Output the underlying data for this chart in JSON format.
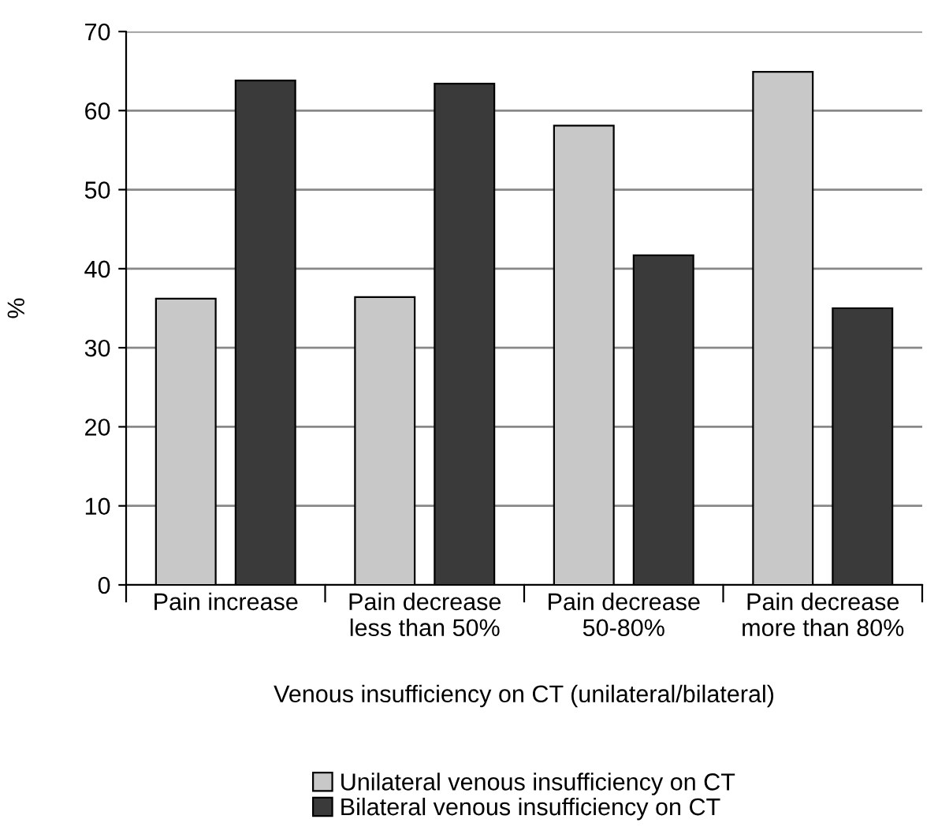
{
  "chart_data": {
    "type": "bar",
    "ylabel": "%",
    "xlabel": "Venous insufficiency on CT (unilateral/bilateral)",
    "categories": [
      "Pain increase",
      "Pain decrease\nless than 50%",
      "Pain decrease\n50-80%",
      "Pain decrease\nmore than 80%"
    ],
    "series": [
      {
        "name": "Unilateral venous insufficiency on CT",
        "color": "#c8c8c8",
        "values": [
          36.2,
          36.4,
          58.1,
          64.9
        ]
      },
      {
        "name": "Bilateral venous insufficiency on CT",
        "color": "#3a3a3a",
        "values": [
          63.8,
          63.4,
          41.7,
          35.0
        ]
      }
    ],
    "ylim": [
      0,
      70
    ],
    "yticks": [
      0,
      10,
      20,
      30,
      40,
      50,
      60,
      70
    ],
    "grid": "y",
    "legend": "bottom"
  }
}
